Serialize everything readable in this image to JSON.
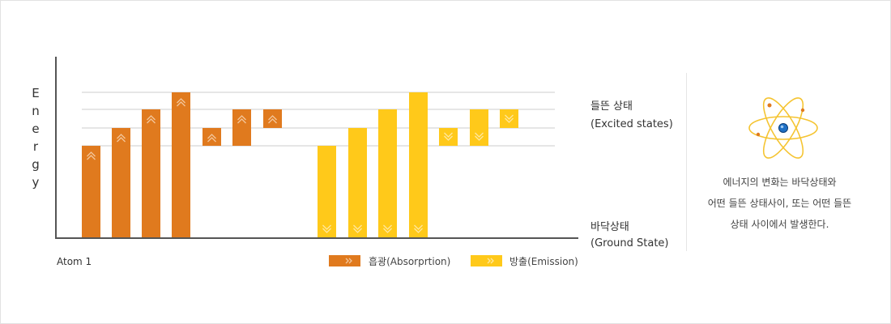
{
  "y_axis_label": "Energy",
  "levels": {
    "excited": [
      "들뜬 상태",
      "(Excited states)"
    ],
    "ground": [
      "바닥상태",
      "(Ground State)"
    ]
  },
  "atom_label": "Atom 1",
  "legend": {
    "absorption": "흡광(Absorprtion)",
    "emission": "방출(Emission)"
  },
  "colors": {
    "absorption": "#E07A1E",
    "emission": "#FFC91A",
    "arrow": "#F3C79C",
    "arrow_emission": "#FFE8A0",
    "axis": "#555555",
    "gridline": "#cccccc",
    "atom_orbit": "#F5C431",
    "atom_nucleus": "#1E6FC4",
    "atom_electron": "#E07A1E"
  },
  "description": [
    "에너지의 변화는 바닥상태와",
    "어떤 들뜬 상태사이, 또는 어떤 들뜬",
    "상태 사이에서 발생한다."
  ],
  "icons": {
    "atom": "atom-icon",
    "absorption_arrow": "double-chevron-up",
    "emission_arrow": "double-chevron-down",
    "legend_arrow": "double-chevron-right"
  },
  "chart_data": {
    "type": "bar",
    "levels": [
      0,
      1,
      2,
      3,
      4
    ],
    "level_names": {
      "ground": 0,
      "excited": [
        1,
        2,
        3,
        4
      ]
    },
    "absorption": [
      {
        "from": 0,
        "to": 1
      },
      {
        "from": 0,
        "to": 2
      },
      {
        "from": 0,
        "to": 3
      },
      {
        "from": 0,
        "to": 4
      },
      {
        "from": 1,
        "to": 2
      },
      {
        "from": 1,
        "to": 3
      },
      {
        "from": 2,
        "to": 3
      }
    ],
    "emission": [
      {
        "from": 1,
        "to": 0
      },
      {
        "from": 2,
        "to": 0
      },
      {
        "from": 3,
        "to": 0
      },
      {
        "from": 4,
        "to": 0
      },
      {
        "from": 2,
        "to": 1
      },
      {
        "from": 3,
        "to": 1
      },
      {
        "from": 3,
        "to": 2
      }
    ]
  }
}
